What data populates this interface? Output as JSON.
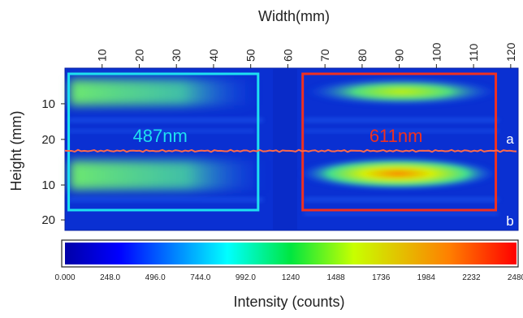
{
  "chart_data": {
    "type": "heatmap",
    "x_title": "Width(mm)",
    "y_title": "Height (mm)",
    "x_ticks": [
      10,
      20,
      30,
      40,
      50,
      60,
      70,
      80,
      90,
      100,
      110,
      120
    ],
    "x_range": [
      0,
      122
    ],
    "panels": [
      {
        "label": "a",
        "y_ticks": [
          10,
          20
        ],
        "y_range": [
          0,
          23
        ]
      },
      {
        "label": "b",
        "y_ticks": [
          10,
          20
        ],
        "y_range": [
          0,
          23
        ]
      }
    ],
    "regions": [
      {
        "label": "487nm",
        "color": "#1ee0f0",
        "x_range": [
          1,
          52
        ]
      },
      {
        "label": "611nm",
        "color": "#f03020",
        "x_range": [
          64,
          116
        ]
      }
    ],
    "colorbar": {
      "title": "Intensity (counts)",
      "range": [
        0,
        2480
      ],
      "tick_labels": [
        "0.000",
        "248.0",
        "496.0",
        "744.0",
        "992.0",
        "1240",
        "1488",
        "1736",
        "1984",
        "2232",
        "2480"
      ],
      "colormap": "jet"
    },
    "colors": {
      "background": "#0a2fd0",
      "divider_line": "#ff6a4a"
    }
  }
}
